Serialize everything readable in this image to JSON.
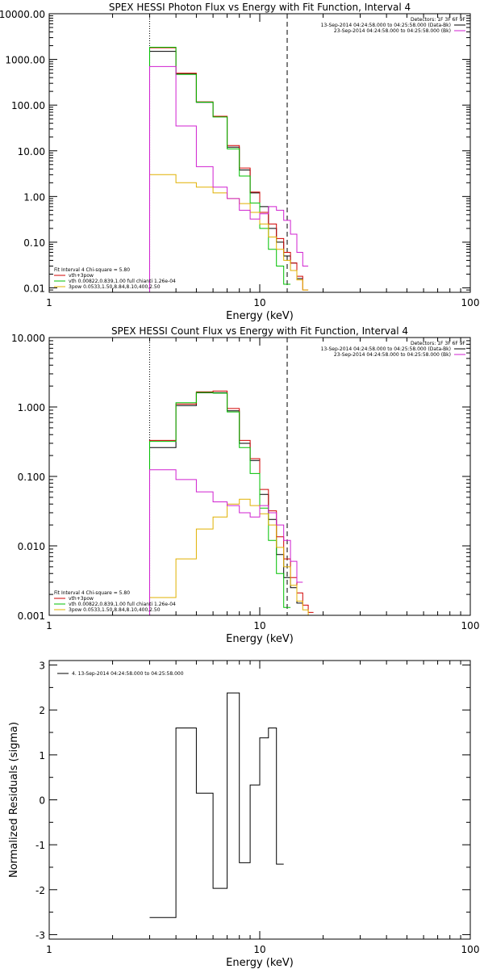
{
  "chart_data": [
    {
      "type": "line",
      "step": true,
      "title": "SPEX HESSI Photon Flux vs Energy with Fit Function, Interval 4",
      "xlabel": "Energy (keV)",
      "ylabel": "",
      "xscale": "log",
      "yscale": "log",
      "xlim": [
        1,
        100
      ],
      "ylim": [
        0.008,
        10000
      ],
      "x_ticks": [
        "1",
        "10",
        "100"
      ],
      "y_ticks": [
        {
          "v": 10000,
          "label": "10000.00"
        },
        {
          "v": 1000,
          "label": "1000.00"
        },
        {
          "v": 100,
          "label": "100.00"
        },
        {
          "v": 10,
          "label": "10.00"
        },
        {
          "v": 1,
          "label": "1.00"
        },
        {
          "v": 0.1,
          "label": "0.10"
        },
        {
          "v": 0.01,
          "label": "0.01"
        }
      ],
      "vlines": [
        {
          "x": 3.0,
          "style": "dotted"
        },
        {
          "x": 13.5,
          "style": "dashed"
        }
      ],
      "legend_top_right": [
        {
          "text": "Detectors: 1F 3F 6F 9F",
          "color": "#000000",
          "swatch": false
        },
        {
          "text": "13-Sep-2014 04:24:58.000 to 04:25:58.000 (Data-Bk)",
          "color": "#000000",
          "swatch": true
        },
        {
          "text": "23-Sep-2014 04:24:58.000 to 04:25:58.000 (Bk)",
          "color": "#d020d0",
          "swatch": true
        }
      ],
      "legend_bottom_left": [
        {
          "text": "Fit Interval 4   Chi-square = 5.80",
          "color": "#000000",
          "swatch": false
        },
        {
          "text": "vth+3pow",
          "color": "#d00000",
          "swatch": true
        },
        {
          "text": "vth 0.00822,0.839,1.00   full chianti 1.26e-04",
          "color": "#00c000",
          "swatch": true
        },
        {
          "text": "3pow 0.0533,1.50,8.84,8.10,400,2.50",
          "color": "#e0b000",
          "swatch": true
        }
      ],
      "bin_edges": [
        3,
        4,
        5,
        6,
        7,
        8,
        9,
        10,
        11,
        12,
        13,
        14,
        15,
        16,
        17
      ],
      "series": [
        {
          "name": "Data-Bk",
          "color": "#000000",
          "values": [
            1500,
            480,
            115,
            56,
            12,
            3.8,
            1.2,
            0.6,
            0.2,
            0.1,
            0.05,
            0.035,
            0.016,
            null
          ]
        },
        {
          "name": "vth+3pow",
          "color": "#d00000",
          "values": [
            1800,
            500,
            118,
            57,
            13,
            4.2,
            1.25,
            0.45,
            0.25,
            0.12,
            0.06,
            0.035,
            0.018,
            0.009
          ]
        },
        {
          "name": "vth",
          "color": "#00c000",
          "values": [
            1850,
            470,
            116,
            55,
            11,
            2.8,
            0.72,
            0.2,
            0.07,
            0.03,
            0.012,
            null,
            null,
            null
          ]
        },
        {
          "name": "3pow",
          "color": "#e0b000",
          "values": [
            3.0,
            2.0,
            1.6,
            1.2,
            0.9,
            0.7,
            0.45,
            0.25,
            0.13,
            0.07,
            0.04,
            0.024,
            0.015,
            0.009
          ]
        },
        {
          "name": "Bk",
          "color": "#d020d0",
          "values": [
            700,
            35,
            4.5,
            1.6,
            0.9,
            0.5,
            0.32,
            0.42,
            0.6,
            0.5,
            0.3,
            0.15,
            0.06,
            0.03
          ]
        }
      ]
    },
    {
      "type": "line",
      "step": true,
      "title": "SPEX HESSI Count Flux vs Energy with Fit Function, Interval 4",
      "xlabel": "Energy (keV)",
      "ylabel": "",
      "xscale": "log",
      "yscale": "log",
      "xlim": [
        1,
        100
      ],
      "ylim": [
        0.001,
        10
      ],
      "x_ticks": [
        "1",
        "10",
        "100"
      ],
      "y_ticks": [
        {
          "v": 10,
          "label": "10.000"
        },
        {
          "v": 1,
          "label": "1.000"
        },
        {
          "v": 0.1,
          "label": "0.100"
        },
        {
          "v": 0.01,
          "label": "0.010"
        },
        {
          "v": 0.001,
          "label": "0.001"
        }
      ],
      "vlines": [
        {
          "x": 3.0,
          "style": "dotted"
        },
        {
          "x": 13.5,
          "style": "dashed"
        }
      ],
      "legend_top_right": [
        {
          "text": "Detectors: 1F 3F 6F 9F",
          "color": "#000000",
          "swatch": false
        },
        {
          "text": "13-Sep-2014 04:24:58.000 to 04:25:58.000 (Data-Bk)",
          "color": "#000000",
          "swatch": true
        },
        {
          "text": "23-Sep-2014 04:24:58.000 to 04:25:58.000 (Bk)",
          "color": "#d020d0",
          "swatch": true
        }
      ],
      "legend_bottom_left": [
        {
          "text": "Fit Interval 4   Chi-square = 5.80",
          "color": "#000000",
          "swatch": false
        },
        {
          "text": "vth+3pow",
          "color": "#d00000",
          "swatch": true
        },
        {
          "text": "vth 0.00822,0.839,1.00   full chianti 1.26e-04",
          "color": "#00c000",
          "swatch": true
        },
        {
          "text": "3pow 0.0533,1.50,8.84,8.10,400,2.50",
          "color": "#e0b000",
          "swatch": true
        }
      ],
      "bin_edges": [
        3,
        4,
        5,
        6,
        7,
        8,
        9,
        10,
        11,
        12,
        13,
        14,
        15,
        16,
        17,
        18
      ],
      "series": [
        {
          "name": "Data-Bk",
          "color": "#000000",
          "values": [
            0.26,
            1.05,
            1.6,
            1.6,
            0.88,
            0.3,
            0.17,
            0.055,
            0.024,
            0.0075,
            0.0035,
            0.0025,
            0.0015,
            null,
            null
          ]
        },
        {
          "name": "vth+3pow",
          "color": "#d00000",
          "values": [
            0.33,
            1.1,
            1.65,
            1.7,
            0.95,
            0.33,
            0.18,
            0.065,
            0.032,
            0.0135,
            0.0065,
            0.0035,
            0.0021,
            0.0014,
            0.0011
          ]
        },
        {
          "name": "vth",
          "color": "#00c000",
          "values": [
            0.32,
            1.15,
            1.62,
            1.58,
            0.85,
            0.26,
            0.11,
            0.035,
            0.012,
            0.004,
            0.0013,
            null,
            null,
            null,
            null
          ]
        },
        {
          "name": "3pow",
          "color": "#e0b000",
          "values": [
            0.0018,
            0.0065,
            0.0175,
            0.026,
            0.04,
            0.047,
            0.038,
            0.029,
            0.02,
            0.0095,
            0.005,
            0.0027,
            0.0016,
            0.0012,
            0.001
          ]
        },
        {
          "name": "Bk",
          "color": "#d020d0",
          "values": [
            0.125,
            0.09,
            0.06,
            0.043,
            0.038,
            0.03,
            0.026,
            0.038,
            0.03,
            0.02,
            0.012,
            0.006,
            0.003,
            null,
            null
          ]
        }
      ]
    },
    {
      "type": "line",
      "step": true,
      "title": "",
      "xlabel": "Energy (keV)",
      "ylabel": "Normalized Residuals (sigma)",
      "xscale": "log",
      "yscale": "linear",
      "xlim": [
        1,
        100
      ],
      "ylim": [
        -3.1,
        3.1
      ],
      "x_ticks": [
        "1",
        "10",
        "100"
      ],
      "y_ticks": [
        {
          "v": 3,
          "label": "3"
        },
        {
          "v": 2,
          "label": "2"
        },
        {
          "v": 1,
          "label": "1"
        },
        {
          "v": 0,
          "label": "0"
        },
        {
          "v": -1,
          "label": "-1"
        },
        {
          "v": -2,
          "label": "-2"
        },
        {
          "v": -3,
          "label": "-3"
        }
      ],
      "vlines": [],
      "legend_top_left": [
        {
          "text": "4. 13-Sep-2014 04:24:58.000 to 04:25:58.000",
          "color": "#000000",
          "swatch": true
        }
      ],
      "bin_edges": [
        3,
        4,
        5,
        6,
        7,
        8,
        9,
        10,
        11,
        12,
        13,
        14
      ],
      "series": [
        {
          "name": "",
          "color": "#000000",
          "values": [
            -2.62,
            1.6,
            0.15,
            -1.97,
            2.38,
            -1.4,
            0.33,
            1.38,
            1.6,
            -1.43,
            null
          ]
        }
      ]
    }
  ]
}
